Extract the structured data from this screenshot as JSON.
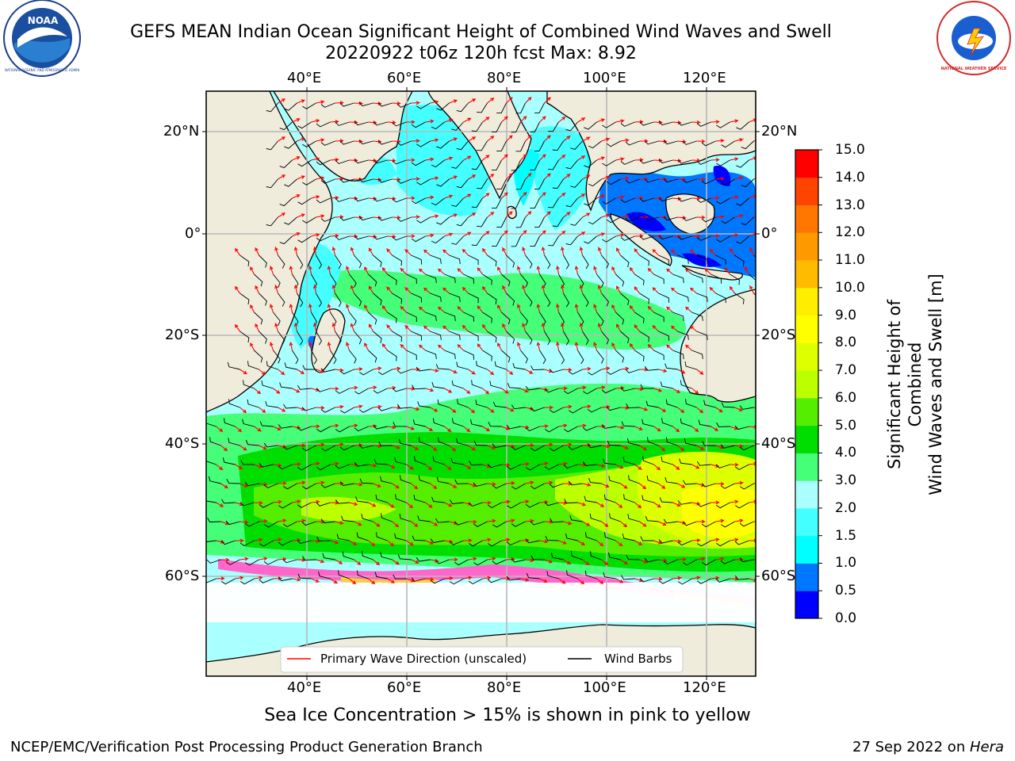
{
  "header": {
    "title_line1": "GEFS MEAN Indian Ocean Significant Height of Combined Wind Waves and Swell",
    "title_line2": "20220922 t06z 120h fcst   Max: 8.92"
  },
  "logos": {
    "noaa_text": "NOAA",
    "noaa_ring_text": "NATIONAL OCEANIC AND ATMOSPHERIC ADMINISTRATION · U.S. DEPARTMENT OF COMMERCE",
    "nws_ring_text": "NATIONAL WEATHER SERVICE"
  },
  "map": {
    "lon_ticks": [
      "40°E",
      "60°E",
      "80°E",
      "100°E",
      "120°E"
    ],
    "lat_ticks": [
      "20°N",
      "0°",
      "20°S",
      "40°S",
      "60°S"
    ],
    "legend": {
      "wave_label": "Primary Wave Direction (unscaled)",
      "barb_label": "Wind Barbs",
      "wave_color": "#ff0000",
      "barb_color": "#000000"
    },
    "land_color": "#efecdc",
    "ice_note": "Sea Ice Concentration > 15% is shown in pink to yellow"
  },
  "colorbar": {
    "label_line1": "Significant Height of Combined",
    "label_line2": "Wind Waves and Swell [m]",
    "ticks": [
      "0.0",
      "0.5",
      "1.0",
      "1.5",
      "2.0",
      "3.0",
      "4.0",
      "5.0",
      "6.0",
      "7.0",
      "8.0",
      "9.0",
      "10.0",
      "11.0",
      "12.0",
      "13.0",
      "14.0",
      "15.0"
    ],
    "colors": [
      "#0000ff",
      "#0077ff",
      "#00ffff",
      "#44ffff",
      "#aaffff",
      "#44ff77",
      "#00dd00",
      "#55ee00",
      "#bbff00",
      "#ddff00",
      "#ffff00",
      "#ffee00",
      "#ffbb00",
      "#ff9900",
      "#ff7700",
      "#ff4400",
      "#ff0000"
    ]
  },
  "footer": {
    "left": "NCEP/EMC/Verification Post Processing Product Generation Branch",
    "right_prefix": "27 Sep 2022 on ",
    "right_host": "Hera"
  }
}
